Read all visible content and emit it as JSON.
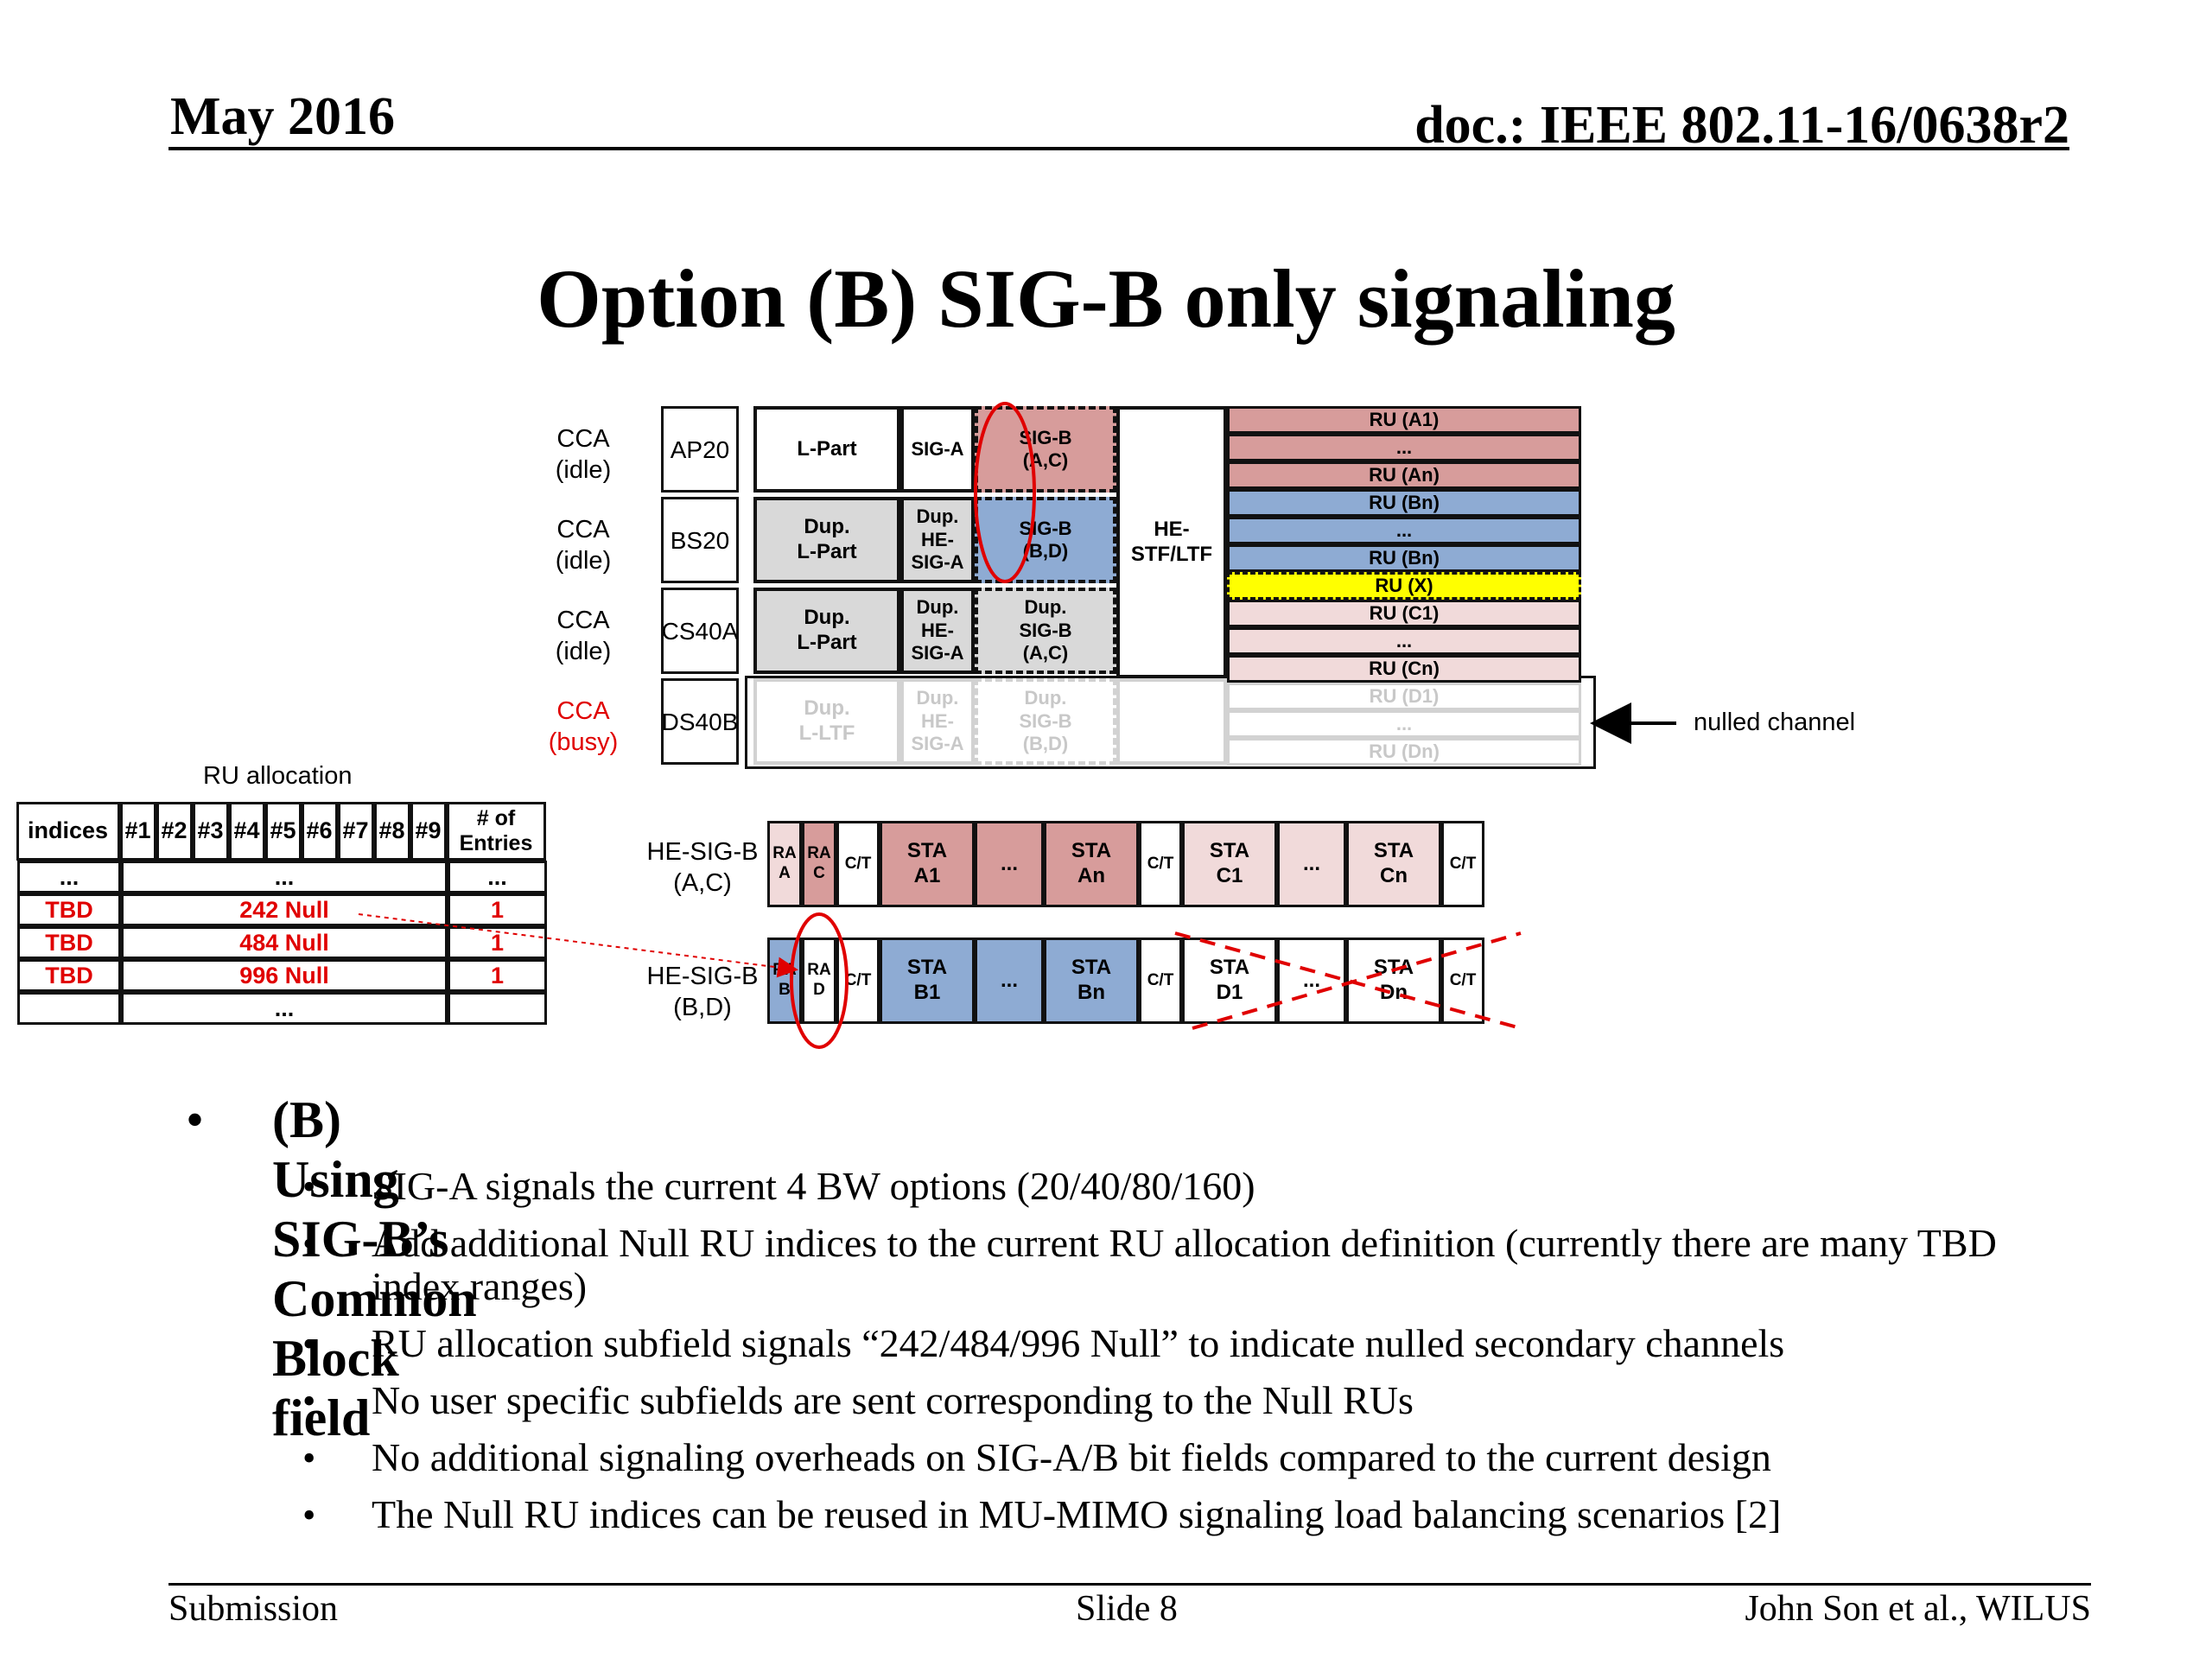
{
  "header": {
    "date": "May 2016",
    "doc": "doc.: IEEE 802.11-16/0638r2"
  },
  "title": "Option (B) SIG-B only signaling",
  "diagram": {
    "cca_rows": [
      {
        "cca": "CCA",
        "state": "(idle)",
        "channel": "A",
        "channel_sub": "P20"
      },
      {
        "cca": "CCA",
        "state": "(idle)",
        "channel": "B",
        "channel_sub": "S20"
      },
      {
        "cca": "CCA",
        "state": "(idle)",
        "channel": "C",
        "channel_sub": "S40A"
      },
      {
        "cca": "CCA",
        "state": "(busy)",
        "channel": "D",
        "channel_sub": "S40B"
      }
    ],
    "lpart": [
      "L-Part",
      "Dup.\nL-Part",
      "Dup.\nL-Part",
      "Dup.\nL-LTF"
    ],
    "siga": [
      "SIG-A",
      "Dup.\nHE-\nSIG-A",
      "Dup.\nHE-\nSIG-A",
      "Dup.\nHE-\nSIG-A"
    ],
    "sigb": [
      "SIG-B\n(A,C)",
      "SIG-B\n(B,D)",
      "Dup.\nSIG-B\n(A,C)",
      "Dup.\nSIG-B\n(B,D)"
    ],
    "he_stf": "HE-\nSTF/LTF",
    "ru_rows": [
      "RU (A1)",
      "...",
      "RU (An)",
      "RU (Bn)",
      "...",
      "RU (Bn)",
      "RU (X)",
      "RU (C1)",
      "...",
      "RU (Cn)",
      "RU (D1)",
      "...",
      "RU (Dn)"
    ],
    "nulled_label": "nulled channel",
    "colors": {
      "red": "#d79c9b",
      "blue": "#8eabd3",
      "pink": "#f1dada",
      "yellow": "#ffff00",
      "gray": "#d9d9d9",
      "accent_red": "#e00000"
    }
  },
  "sigb_rows": {
    "ac_label": "HE-SIG-B\n(A,C)",
    "bd_label": "HE-SIG-B\n(B,D)",
    "ac_fields": [
      "RA\nA",
      "RA\nC",
      "C/T",
      "STA\nA1",
      "...",
      "STA\nAn",
      "C/T",
      "STA\nC1",
      "...",
      "STA\nCn",
      "C/T"
    ],
    "bd_fields": [
      "RA\nB",
      "RA\nD",
      "C/T",
      "STA\nB1",
      "...",
      "STA\nBn",
      "C/T",
      "STA\nD1",
      "...",
      "STA\nDn",
      "C/T"
    ]
  },
  "ru_table": {
    "caption": "RU allocation",
    "headers": [
      "indices",
      "#1",
      "#2",
      "#3",
      "#4",
      "#5",
      "#6",
      "#7",
      "#8",
      "#9",
      "# of\nEntries"
    ],
    "rows": [
      {
        "index": "...",
        "middle": "...",
        "entries": "..."
      },
      {
        "index": "TBD",
        "middle": "242 Null",
        "entries": "1"
      },
      {
        "index": "TBD",
        "middle": "484 Null",
        "entries": "1"
      },
      {
        "index": "TBD",
        "middle": "996 Null",
        "entries": "1"
      },
      {
        "index": "",
        "middle": "...",
        "entries": ""
      }
    ]
  },
  "bullets": {
    "main": "(B) Using SIG-B’s Common Block field",
    "items": [
      "SIG-A signals the current 4 BW options (20/40/80/160)",
      "Add additional Null RU indices to the current RU allocation definition (currently there are many TBD index ranges)",
      "RU allocation subfield signals “242/484/996 Null” to indicate nulled secondary channels",
      "No user specific subfields are sent corresponding to the Null RUs",
      "No additional signaling overheads on SIG-A/B bit fields compared to the current design",
      "The Null RU indices can be reused in MU-MIMO signaling load balancing scenarios [2]"
    ]
  },
  "footer": {
    "left": "Submission",
    "center": "Slide 8",
    "right": "John Son et al., WILUS"
  }
}
